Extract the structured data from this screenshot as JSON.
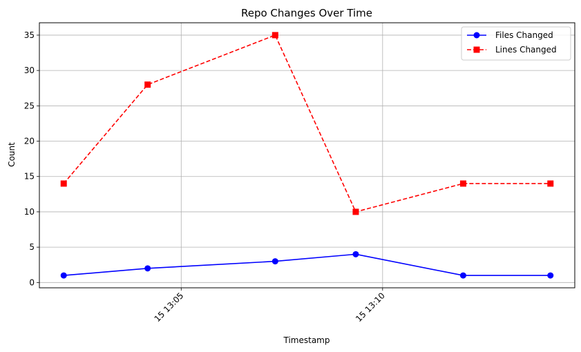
{
  "chart_data": {
    "type": "line",
    "title": "Repo Changes Over Time",
    "xlabel": "Timestamp",
    "ylabel": "Count",
    "x": [
      "15 13:02:05",
      "15 13:04:10",
      "15 13:07:20",
      "15 13:09:20",
      "15 13:12:00",
      "15 13:14:10"
    ],
    "x_ticks": [
      {
        "value": "15 13:05",
        "label": "15 13:05"
      },
      {
        "value": "15 13:10",
        "label": "15 13:10"
      }
    ],
    "ylim": [
      -0.75,
      36.75
    ],
    "y_ticks": [
      0,
      5,
      10,
      15,
      20,
      25,
      30,
      35
    ],
    "grid": true,
    "legend_position": "top-right",
    "series": [
      {
        "name": "Files Changed",
        "values": [
          1,
          2,
          3,
          4,
          1,
          1
        ],
        "color": "#0000ff",
        "line_style": "solid",
        "marker": "circle"
      },
      {
        "name": "Lines Changed",
        "values": [
          14,
          28,
          35,
          10,
          14,
          14
        ],
        "color": "#ff0000",
        "line_style": "dashed",
        "marker": "square"
      }
    ]
  }
}
